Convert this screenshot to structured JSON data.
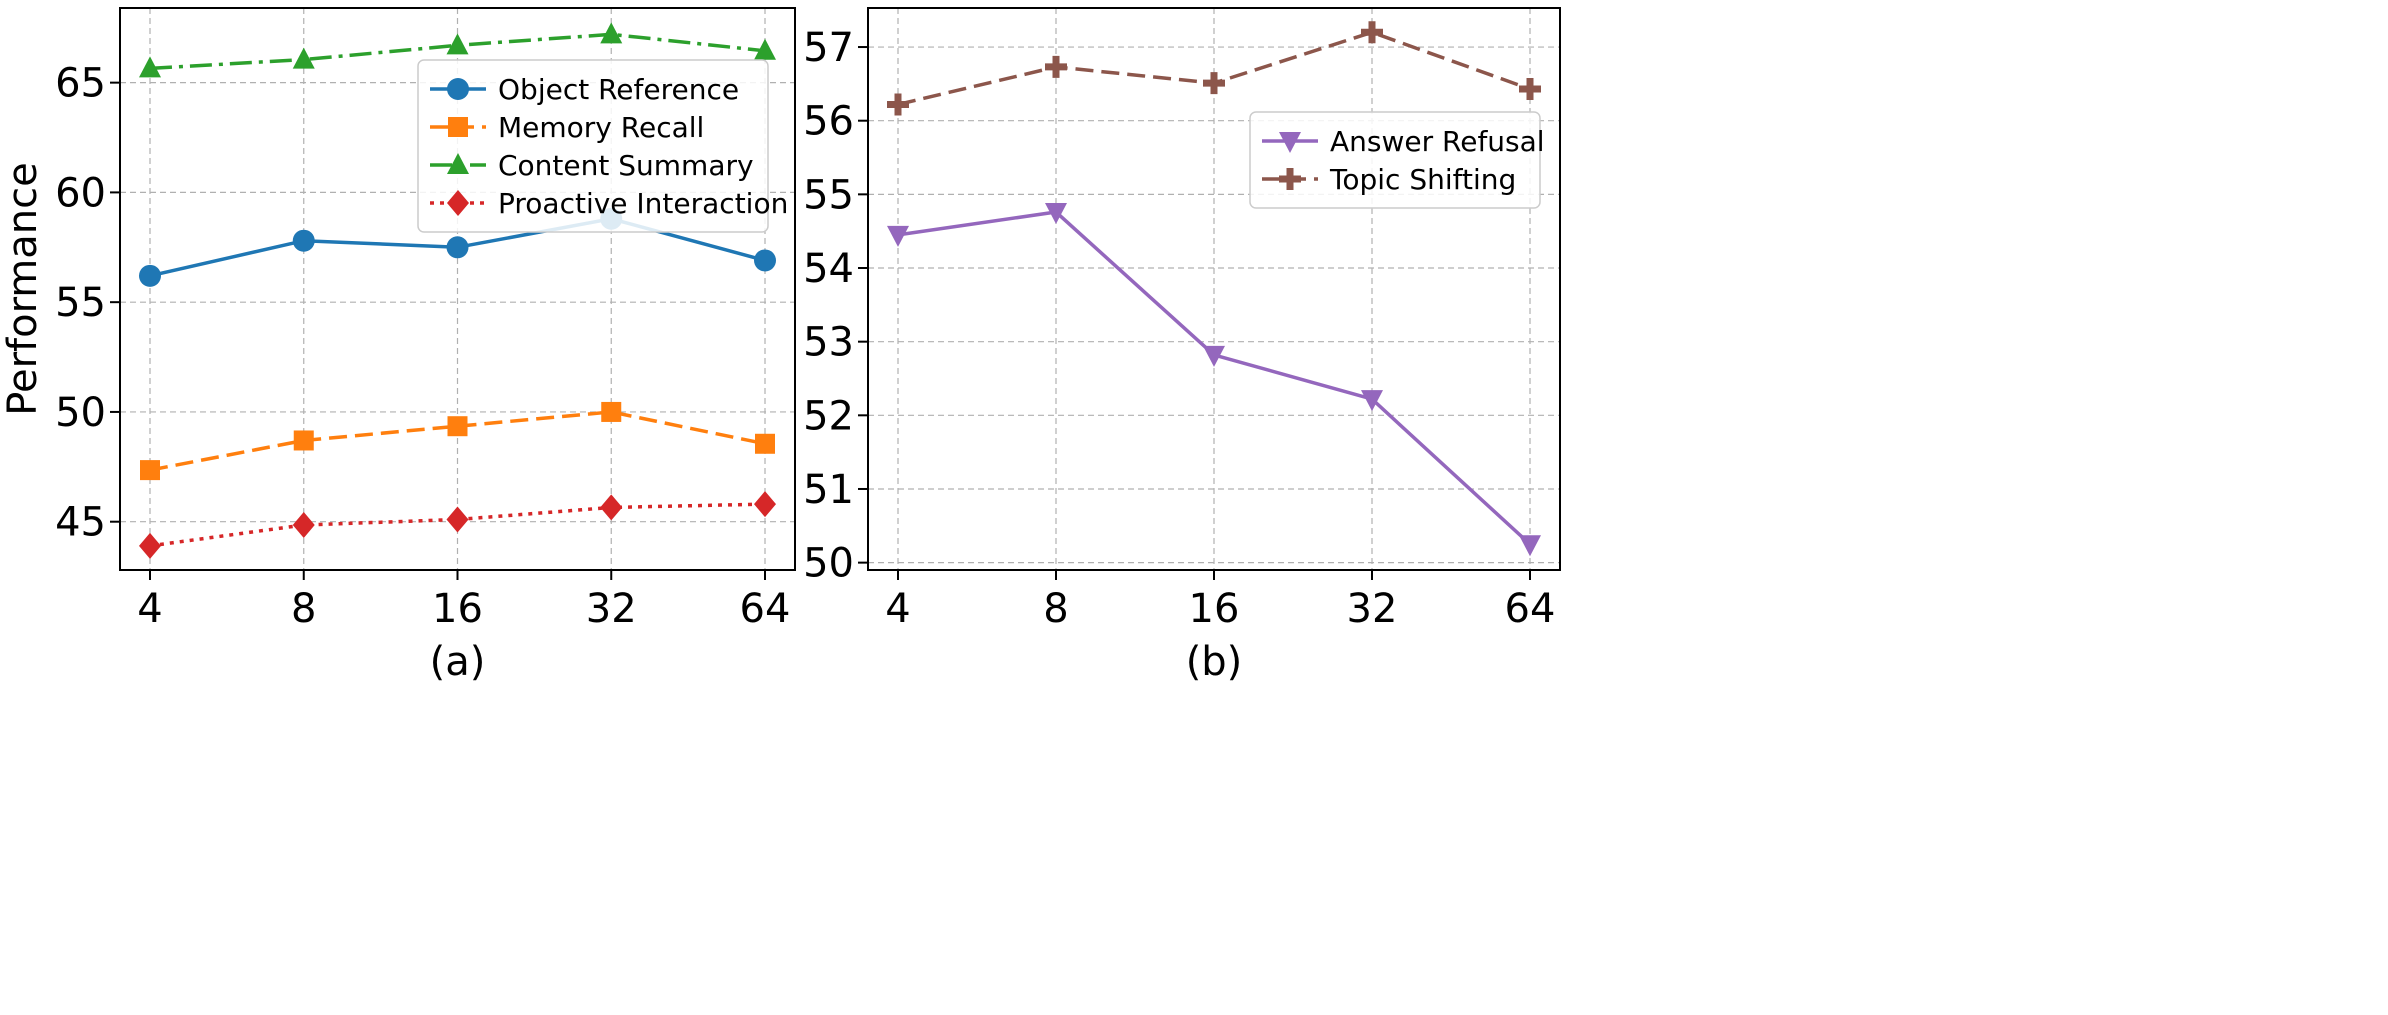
{
  "chart_data": [
    {
      "type": "line",
      "xlabel": "(a)",
      "ylabel": "Performance",
      "categories": [
        "4",
        "8",
        "16",
        "32",
        "64"
      ],
      "yticks": [
        45,
        50,
        55,
        60,
        65
      ],
      "ylim": [
        42.8,
        68.4
      ],
      "grid": true,
      "legend_position": "upper-right",
      "series": [
        {
          "name": "Object Reference",
          "color": "#1f77b4",
          "dash": "solid",
          "marker": "circle",
          "values": [
            56.2,
            57.8,
            57.5,
            58.8,
            56.9
          ]
        },
        {
          "name": "Memory Recall",
          "color": "#ff7f0e",
          "dash": "dashed",
          "marker": "square",
          "values": [
            47.35,
            48.7,
            49.35,
            50.0,
            48.55
          ]
        },
        {
          "name": "Content Summary",
          "color": "#2ca02c",
          "dash": "dashdot",
          "marker": "triangle-up",
          "values": [
            65.65,
            66.05,
            66.7,
            67.2,
            66.45
          ]
        },
        {
          "name": "Proactive Interaction",
          "color": "#d62728",
          "dash": "dotted",
          "marker": "diamond",
          "values": [
            43.9,
            44.85,
            45.1,
            45.65,
            45.8
          ]
        }
      ]
    },
    {
      "type": "line",
      "xlabel": "(b)",
      "ylabel": "",
      "categories": [
        "4",
        "8",
        "16",
        "32",
        "64"
      ],
      "yticks": [
        50,
        51,
        52,
        53,
        54,
        55,
        56,
        57
      ],
      "ylim": [
        49.9,
        57.53
      ],
      "grid": true,
      "legend_position": "center-right",
      "series": [
        {
          "name": "Answer Refusal",
          "color": "#9467bd",
          "dash": "solid",
          "marker": "triangle-down",
          "values": [
            54.45,
            54.76,
            52.82,
            52.22,
            50.25
          ]
        },
        {
          "name": "Topic Shifting",
          "color": "#8c564b",
          "dash": "dashed",
          "marker": "plus",
          "values": [
            56.22,
            56.73,
            56.51,
            57.2,
            56.43
          ]
        }
      ]
    }
  ]
}
